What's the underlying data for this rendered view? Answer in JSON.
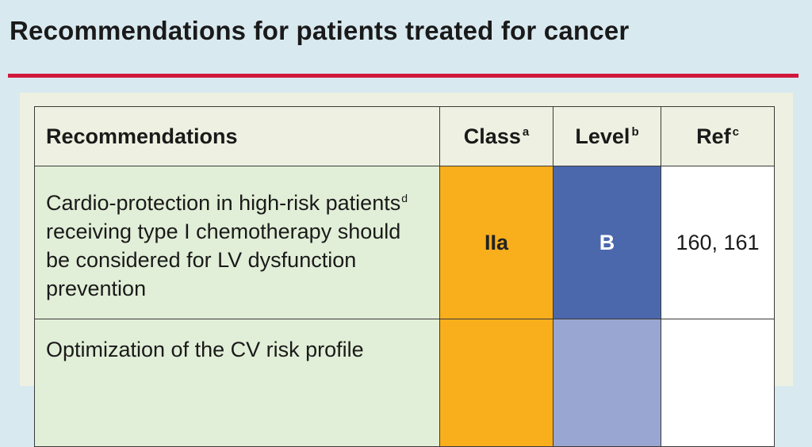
{
  "title": "Recommendations for patients treated for cancer",
  "colors": {
    "class_IIa": "#f9ae1c",
    "level_B": "#4b68ad",
    "level_C": "#9aa6d2",
    "title_rule": "#d0183c"
  },
  "table": {
    "headers": {
      "recommendations": "Recommendations",
      "class": "Class",
      "class_sup": "a",
      "level": "Level",
      "level_sup": "b",
      "ref": "Ref",
      "ref_sup": "c"
    },
    "rows": [
      {
        "text_before": "Cardio-protection in high-risk patients",
        "sup": "d",
        "text_after": " receiving type I chemotherapy should be considered for LV dysfunction prevention",
        "class": "IIa",
        "level": "B",
        "ref": "160, 161"
      },
      {
        "text_before": "Optimization of the CV risk profile",
        "class": "",
        "level": "",
        "ref": ""
      }
    ]
  }
}
